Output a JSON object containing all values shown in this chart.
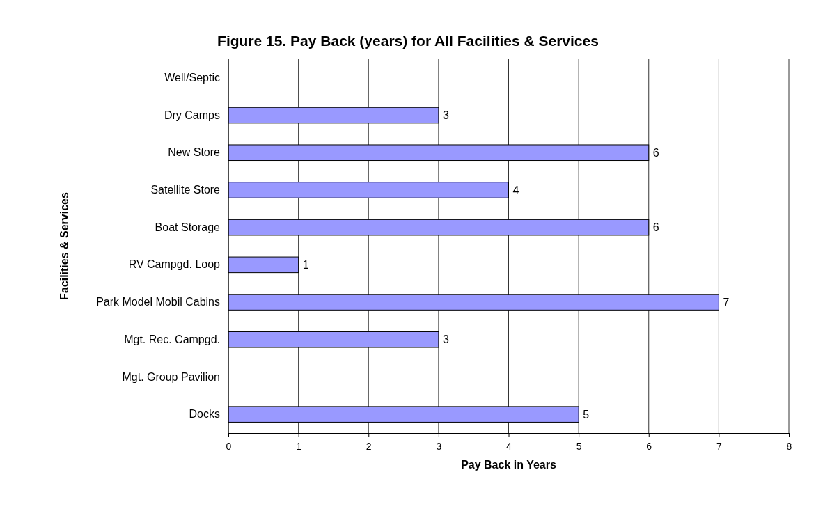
{
  "chart_data": {
    "type": "bar",
    "orientation": "horizontal",
    "title": "Figure 15. Pay Back (years) for All Facilities & Services",
    "xlabel": "Pay Back in Years",
    "ylabel": "Facilities & Services",
    "categories": [
      "Well/Septic",
      "Dry Camps",
      "New Store",
      "Satellite Store",
      "Boat Storage",
      "RV Campgd. Loop",
      "Park Model Mobil Cabins",
      "Mgt. Rec. Campgd.",
      "Mgt. Group Pavilion",
      "Docks"
    ],
    "values": [
      null,
      3,
      6,
      4,
      6,
      1,
      7,
      3,
      null,
      5
    ],
    "color": "#9999ff",
    "xlim": [
      0,
      8
    ],
    "xticks": [
      0,
      1,
      2,
      3,
      4,
      5,
      6,
      7,
      8
    ],
    "grid": "x",
    "data_labels": true
  }
}
